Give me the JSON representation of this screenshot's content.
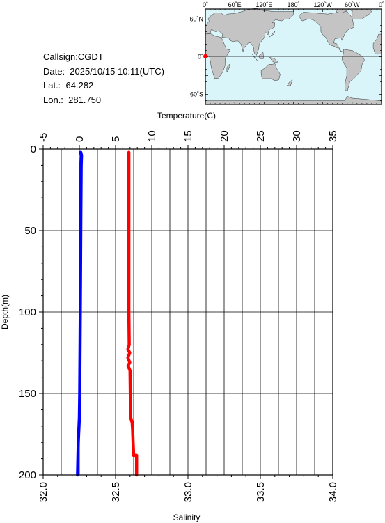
{
  "info": {
    "callsign": "Callsign:CGDT",
    "date": "Date:  2025/10/15 10:11(UTC)",
    "lat": "Lat.:  64.282",
    "lon": "Lon.:  281.750"
  },
  "map": {
    "top_labels": [
      "0˚",
      "60˚E",
      "120˚E",
      "180˚",
      "120˚W",
      "60˚W",
      "0˚"
    ],
    "side_labels": [
      "60˚N",
      "0˚",
      "60˚S"
    ],
    "ocean_color": "#d9f5f9",
    "land_color": "#c4c4c4",
    "marker_color": "#ff0000"
  },
  "chart_data": {
    "type": "line",
    "y_axis": {
      "label": "Depth(m)",
      "range": [
        0,
        200
      ],
      "ticks": [
        0,
        50,
        100,
        150,
        200
      ],
      "inverted": true
    },
    "top_axis": {
      "label": "Temperature(C)",
      "range": [
        -5,
        35
      ],
      "ticks": [
        -5,
        0,
        5,
        10,
        15,
        20,
        25,
        30,
        35
      ]
    },
    "bottom_axis": {
      "label": "Salinity",
      "range": [
        32.0,
        34.0
      ],
      "ticks": [
        "32.0",
        "32.5",
        "33.0",
        "33.5",
        "34.0"
      ]
    },
    "grid": true,
    "series": [
      {
        "quantity": "temperature",
        "color": "#0000ff",
        "points": [
          [
            0.2,
            2
          ],
          [
            0.3,
            4
          ],
          [
            0.25,
            10
          ],
          [
            0.2,
            40
          ],
          [
            0.15,
            80
          ],
          [
            0.1,
            120
          ],
          [
            0.05,
            150
          ],
          [
            0.0,
            165
          ],
          [
            -0.15,
            180
          ],
          [
            -0.25,
            200
          ]
        ]
      },
      {
        "quantity": "salinity",
        "color": "#ff0000",
        "points": [
          [
            32.592,
            2
          ],
          [
            32.592,
            50
          ],
          [
            32.592,
            100
          ],
          [
            32.594,
            120
          ],
          [
            32.585,
            123
          ],
          [
            32.598,
            125
          ],
          [
            32.585,
            128
          ],
          [
            32.598,
            131
          ],
          [
            32.586,
            133
          ],
          [
            32.6,
            136
          ],
          [
            32.602,
            150
          ],
          [
            32.605,
            165
          ],
          [
            32.615,
            168
          ],
          [
            32.618,
            172
          ],
          [
            32.62,
            178
          ],
          [
            32.623,
            184
          ],
          [
            32.625,
            188
          ],
          [
            32.645,
            188
          ],
          [
            32.645,
            200
          ]
        ]
      }
    ]
  }
}
